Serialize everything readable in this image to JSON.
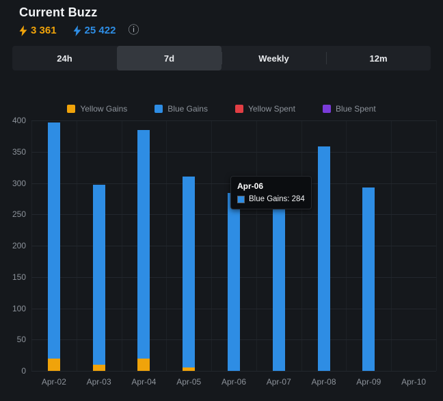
{
  "header": {
    "title": "Current Buzz",
    "yellow_stat": "3 361",
    "blue_stat": "25 422",
    "info_icon": "ⓘ",
    "yellow_color": "#f0a30a",
    "blue_color": "#2e8de4"
  },
  "tabs": [
    {
      "label": "24h",
      "active": false
    },
    {
      "label": "7d",
      "active": true
    },
    {
      "label": "Weekly",
      "active": false
    },
    {
      "label": "12m",
      "active": false
    }
  ],
  "chart_data": {
    "type": "bar",
    "stacked": true,
    "title": "",
    "xlabel": "",
    "ylabel": "",
    "ylim": [
      0,
      400
    ],
    "ytick_step": 50,
    "grid": true,
    "legend_position": "top",
    "categories": [
      "Apr-02",
      "Apr-03",
      "Apr-04",
      "Apr-05",
      "Apr-06",
      "Apr-07",
      "Apr-08",
      "Apr-09",
      "Apr-10"
    ],
    "series": [
      {
        "name": "Yellow Gains",
        "color": "#f0a30a",
        "values": [
          20,
          10,
          20,
          5,
          0,
          0,
          0,
          0,
          0
        ]
      },
      {
        "name": "Blue Gains",
        "color": "#2e8de4",
        "values": [
          377,
          287,
          365,
          305,
          284,
          290,
          358,
          293,
          0
        ]
      },
      {
        "name": "Yellow Spent",
        "color": "#e23e44",
        "values": [
          0,
          0,
          0,
          0,
          0,
          0,
          0,
          0,
          0
        ]
      },
      {
        "name": "Blue Spent",
        "color": "#7a3bd9",
        "values": [
          0,
          0,
          0,
          0,
          0,
          0,
          0,
          0,
          0
        ]
      }
    ]
  },
  "tooltip": {
    "title": "Apr-06",
    "row_label": "Blue Gains: 284",
    "swatch_color": "#2e8de4"
  }
}
